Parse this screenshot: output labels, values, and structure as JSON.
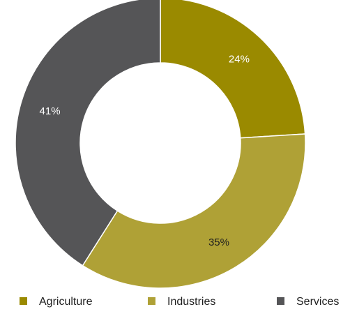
{
  "chart_data": {
    "type": "pie",
    "donut": true,
    "categories": [
      "Agriculture",
      "Industries",
      "Services"
    ],
    "values": [
      24,
      35,
      41
    ],
    "value_labels": [
      "24%",
      "35%",
      "41%"
    ],
    "colors": [
      "#9a8a00",
      "#afa136",
      "#555557"
    ],
    "label_colors": [
      "#ffffff",
      "#1e1e1e",
      "#ffffff"
    ],
    "start_angle": "12 o'clock",
    "direction": "clockwise",
    "legend": {
      "position": "bottom",
      "items": [
        "Agriculture",
        "Industries",
        "Services"
      ]
    }
  }
}
